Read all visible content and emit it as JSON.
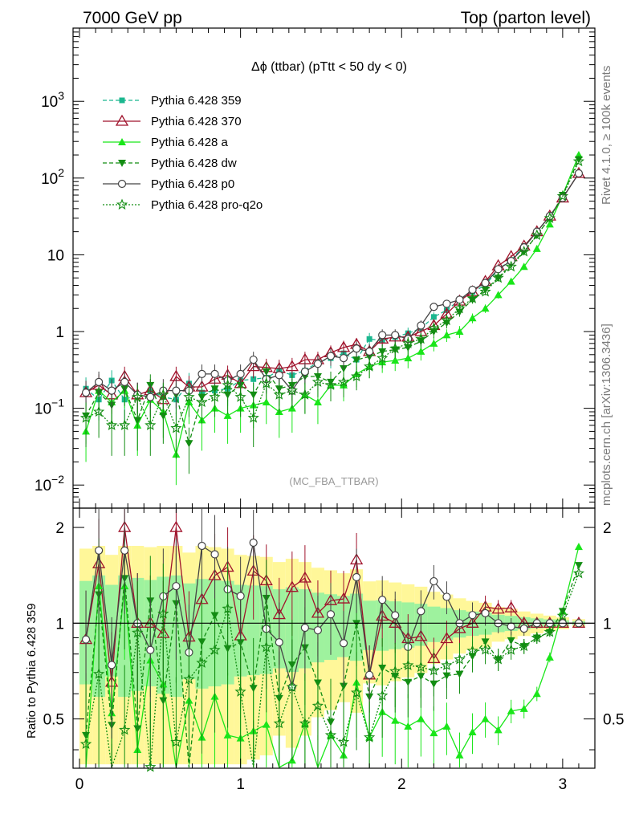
{
  "header": {
    "left": "7000 GeV pp",
    "right": "Top (parton level)"
  },
  "side_labels": {
    "rivet": "Rivet 4.1.0, ≥ 100k events",
    "mcplots": "mcplots.cern.ch [arXiv:1306.3436]"
  },
  "chart_data": {
    "type": "line",
    "title": "Δϕ (ttbar) (pTtt < 50 dy < 0)",
    "watermark": "(MC_FBA_TTBAR)",
    "xlabel": "",
    "ylabel": "",
    "ratio_ylabel": "Ratio to Pythia 6.428 359",
    "xlim": [
      -0.04,
      3.2
    ],
    "ylim": [
      0.005,
      9000
    ],
    "yscale": "log",
    "ratio_ylim": [
      0.35,
      2.3
    ],
    "ratio_ref": 1,
    "legend_position": "top-left",
    "x_ticks": [
      "0",
      "1",
      "2",
      "3"
    ],
    "y_ticks": [
      "10^-2",
      "10^-1",
      "1",
      "10",
      "10^2",
      "10^3"
    ],
    "ratio_ticks": [
      "0.5",
      "1",
      "2"
    ],
    "x": [
      0.04,
      0.12,
      0.2,
      0.28,
      0.36,
      0.44,
      0.52,
      0.6,
      0.68,
      0.76,
      0.84,
      0.92,
      1.0,
      1.08,
      1.16,
      1.24,
      1.32,
      1.4,
      1.48,
      1.56,
      1.64,
      1.72,
      1.8,
      1.88,
      1.96,
      2.04,
      2.12,
      2.2,
      2.28,
      2.36,
      2.44,
      2.52,
      2.6,
      2.68,
      2.76,
      2.84,
      2.92,
      3.0,
      3.1
    ],
    "series": [
      {
        "name": "Pythia 6.428 359",
        "color": "#1bb78f",
        "marker": "square",
        "dash": "5,3",
        "values": [
          0.18,
          0.13,
          0.23,
          0.13,
          0.15,
          0.17,
          0.14,
          0.13,
          0.21,
          0.16,
          0.17,
          0.18,
          0.23,
          0.24,
          0.25,
          0.31,
          0.27,
          0.31,
          0.4,
          0.45,
          0.52,
          0.43,
          0.8,
          0.76,
          0.85,
          0.95,
          1.1,
          1.55,
          1.9,
          2.6,
          3.3,
          4.0,
          6.5,
          8.5,
          13.0,
          20.0,
          32.0,
          55.0,
          115.0
        ]
      },
      {
        "name": "Pythia 6.428 370",
        "color": "#a0132c",
        "marker": "triangle-open",
        "dash": "",
        "values": [
          0.16,
          0.2,
          0.15,
          0.26,
          0.15,
          0.17,
          0.13,
          0.26,
          0.19,
          0.19,
          0.24,
          0.27,
          0.21,
          0.35,
          0.34,
          0.33,
          0.35,
          0.43,
          0.43,
          0.53,
          0.62,
          0.68,
          0.55,
          0.8,
          0.85,
          0.85,
          1.0,
          1.2,
          1.7,
          2.5,
          3.3,
          4.5,
          7.2,
          9.5,
          13.0,
          20.0,
          32.0,
          55.0,
          115.0
        ]
      },
      {
        "name": "Pythia 6.428 a",
        "color": "#19e619",
        "marker": "triangle",
        "dash": "",
        "values": [
          0.05,
          0.17,
          0.12,
          0.17,
          0.06,
          0.13,
          0.09,
          0.025,
          0.12,
          0.07,
          0.1,
          0.08,
          0.1,
          0.11,
          0.12,
          0.09,
          0.1,
          0.15,
          0.12,
          0.2,
          0.2,
          0.28,
          0.35,
          0.4,
          0.42,
          0.45,
          0.55,
          0.7,
          0.9,
          1.0,
          1.5,
          2.0,
          3.0,
          4.5,
          7.0,
          12.0,
          25.0,
          60.0,
          200.0
        ]
      },
      {
        "name": "Pythia 6.428 dw",
        "color": "#138d13",
        "marker": "triangle-down",
        "dash": "5,3",
        "values": [
          0.08,
          0.16,
          0.11,
          0.18,
          0.07,
          0.2,
          0.08,
          0.15,
          0.035,
          0.14,
          0.18,
          0.15,
          0.2,
          0.15,
          0.3,
          0.18,
          0.2,
          0.26,
          0.26,
          0.22,
          0.33,
          0.43,
          0.47,
          0.55,
          0.58,
          0.62,
          0.75,
          1.0,
          1.3,
          1.8,
          2.6,
          3.5,
          5.0,
          7.5,
          11.0,
          18.0,
          30.0,
          60.0,
          175.0
        ]
      },
      {
        "name": "Pythia 6.428 p0",
        "color": "#444444",
        "marker": "circle-open",
        "dash": "",
        "values": [
          0.16,
          0.22,
          0.17,
          0.22,
          0.15,
          0.14,
          0.17,
          0.17,
          0.17,
          0.28,
          0.28,
          0.23,
          0.28,
          0.43,
          0.24,
          0.27,
          0.17,
          0.3,
          0.38,
          0.48,
          0.45,
          0.6,
          0.55,
          0.9,
          0.9,
          0.8,
          1.2,
          2.1,
          2.3,
          2.6,
          3.5,
          4.3,
          6.5,
          8.3,
          12.5,
          20.0,
          32.0,
          55.0,
          115.0
        ]
      },
      {
        "name": "Pythia 6.428 pro-q2o",
        "color": "#138d13",
        "marker": "star",
        "dash": "2,2",
        "values": [
          0.075,
          0.09,
          0.06,
          0.06,
          0.14,
          0.06,
          0.15,
          0.055,
          0.14,
          0.12,
          0.14,
          0.2,
          0.14,
          0.075,
          0.21,
          0.15,
          0.17,
          0.15,
          0.22,
          0.2,
          0.22,
          0.26,
          0.35,
          0.45,
          0.6,
          0.7,
          0.8,
          1.1,
          1.4,
          2.0,
          2.7,
          3.3,
          5.0,
          7.0,
          11.0,
          18.0,
          30.0,
          58.0,
          165.0
        ]
      }
    ]
  }
}
